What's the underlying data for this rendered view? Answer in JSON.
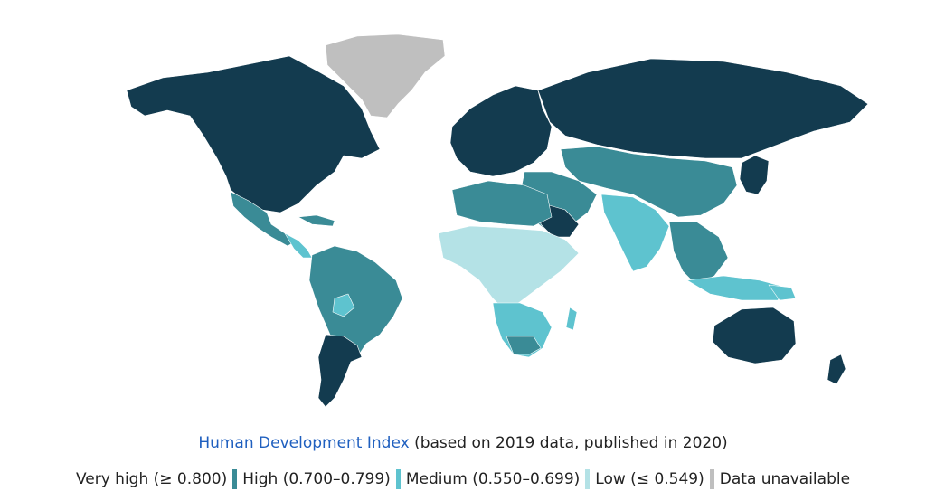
{
  "caption": {
    "link_text": "Human Development Index",
    "rest_text": " (based on 2019 data, published in 2020)"
  },
  "legend": [
    {
      "label": "Very high (≥ 0.800)",
      "color": "#133b4f"
    },
    {
      "label": "High (0.700–0.799)",
      "color": "#3a8b96"
    },
    {
      "label": "Medium (0.550–0.699)",
      "color": "#5ec3cf"
    },
    {
      "label": "Low (≤ 0.549)",
      "color": "#b4e2e6"
    },
    {
      "label": "Data unavailable",
      "color": "#bfbfbf"
    }
  ]
}
